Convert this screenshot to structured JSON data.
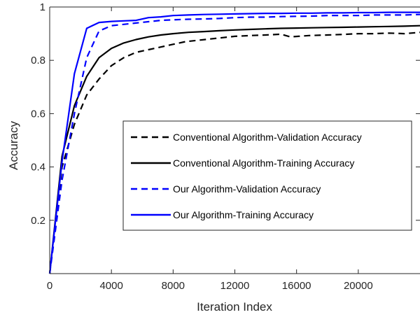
{
  "chart_data": {
    "type": "line",
    "title": "",
    "xlabel": "Iteration Index",
    "ylabel": "Accuracy",
    "xlim": [
      0,
      24000
    ],
    "ylim": [
      0,
      1
    ],
    "x_ticks": [
      0,
      4000,
      8000,
      12000,
      16000,
      20000
    ],
    "y_ticks": [
      0.2,
      0.4,
      0.6,
      0.8,
      1
    ],
    "x_tick_labels": [
      "0",
      "4000",
      "8000",
      "12000",
      "16000",
      "20000"
    ],
    "y_tick_labels": [
      "0.2",
      "0.4",
      "0.6",
      "0.8",
      "1"
    ],
    "grid": false,
    "legend_position": "center-right",
    "series": [
      {
        "name": "Conventional Algorithm-Validation Accuracy",
        "color": "#000000",
        "dash": "dashed",
        "points": [
          [
            0,
            0
          ],
          [
            800,
            0.4
          ],
          [
            1600,
            0.56
          ],
          [
            2400,
            0.67
          ],
          [
            3200,
            0.73
          ],
          [
            4000,
            0.78
          ],
          [
            4800,
            0.81
          ],
          [
            5600,
            0.83
          ],
          [
            6400,
            0.84
          ],
          [
            7200,
            0.85
          ],
          [
            8000,
            0.86
          ],
          [
            8800,
            0.87
          ],
          [
            9600,
            0.875
          ],
          [
            10400,
            0.88
          ],
          [
            11200,
            0.885
          ],
          [
            12000,
            0.89
          ],
          [
            13000,
            0.893
          ],
          [
            14000,
            0.895
          ],
          [
            15000,
            0.898
          ],
          [
            15600,
            0.888
          ],
          [
            16800,
            0.893
          ],
          [
            18000,
            0.895
          ],
          [
            19000,
            0.897
          ],
          [
            20000,
            0.9
          ],
          [
            21000,
            0.9
          ],
          [
            22000,
            0.902
          ],
          [
            23000,
            0.9
          ],
          [
            24000,
            0.905
          ]
        ]
      },
      {
        "name": "Conventional Algorithm-Training Accuracy",
        "color": "#000000",
        "dash": "solid",
        "points": [
          [
            0,
            0
          ],
          [
            800,
            0.44
          ],
          [
            1600,
            0.63
          ],
          [
            2400,
            0.74
          ],
          [
            3200,
            0.81
          ],
          [
            4000,
            0.845
          ],
          [
            4800,
            0.865
          ],
          [
            5600,
            0.878
          ],
          [
            6400,
            0.888
          ],
          [
            7200,
            0.895
          ],
          [
            8000,
            0.9
          ],
          [
            9000,
            0.905
          ],
          [
            10000,
            0.908
          ],
          [
            11000,
            0.911
          ],
          [
            12000,
            0.914
          ],
          [
            13000,
            0.916
          ],
          [
            14000,
            0.918
          ],
          [
            15000,
            0.92
          ],
          [
            16000,
            0.921
          ],
          [
            17000,
            0.922
          ],
          [
            18000,
            0.923
          ],
          [
            19000,
            0.924
          ],
          [
            20000,
            0.925
          ],
          [
            21000,
            0.926
          ],
          [
            22000,
            0.927
          ],
          [
            23000,
            0.928
          ],
          [
            24000,
            0.93
          ]
        ]
      },
      {
        "name": "Our Algorithm-Validation Accuracy",
        "color": "#0000ff",
        "dash": "dashed",
        "points": [
          [
            0,
            0
          ],
          [
            800,
            0.35
          ],
          [
            1600,
            0.6
          ],
          [
            2400,
            0.81
          ],
          [
            3200,
            0.91
          ],
          [
            4000,
            0.93
          ],
          [
            4800,
            0.935
          ],
          [
            5600,
            0.94
          ],
          [
            6400,
            0.945
          ],
          [
            7200,
            0.95
          ],
          [
            8000,
            0.952
          ],
          [
            9000,
            0.954
          ],
          [
            10000,
            0.955
          ],
          [
            11000,
            0.957
          ],
          [
            12000,
            0.96
          ],
          [
            13000,
            0.962
          ],
          [
            14000,
            0.962
          ],
          [
            15000,
            0.964
          ],
          [
            16000,
            0.965
          ],
          [
            17000,
            0.966
          ],
          [
            18000,
            0.968
          ],
          [
            19000,
            0.968
          ],
          [
            20000,
            0.968
          ],
          [
            21000,
            0.97
          ],
          [
            22000,
            0.97
          ],
          [
            23000,
            0.97
          ],
          [
            24000,
            0.972
          ]
        ]
      },
      {
        "name": "Our Algorithm-Training Accuracy",
        "color": "#0000ff",
        "dash": "solid",
        "points": [
          [
            0,
            0
          ],
          [
            800,
            0.42
          ],
          [
            1600,
            0.75
          ],
          [
            2400,
            0.92
          ],
          [
            3200,
            0.942
          ],
          [
            4000,
            0.946
          ],
          [
            4800,
            0.948
          ],
          [
            5600,
            0.95
          ],
          [
            6400,
            0.96
          ],
          [
            7200,
            0.963
          ],
          [
            8000,
            0.968
          ],
          [
            9000,
            0.97
          ],
          [
            10000,
            0.972
          ],
          [
            11000,
            0.973
          ],
          [
            12000,
            0.974
          ],
          [
            13000,
            0.975
          ],
          [
            14000,
            0.976
          ],
          [
            15000,
            0.976
          ],
          [
            16000,
            0.977
          ],
          [
            17000,
            0.977
          ],
          [
            18000,
            0.978
          ],
          [
            19000,
            0.978
          ],
          [
            20000,
            0.979
          ],
          [
            21000,
            0.979
          ],
          [
            22000,
            0.98
          ],
          [
            23000,
            0.98
          ],
          [
            24000,
            0.98
          ]
        ]
      }
    ]
  }
}
